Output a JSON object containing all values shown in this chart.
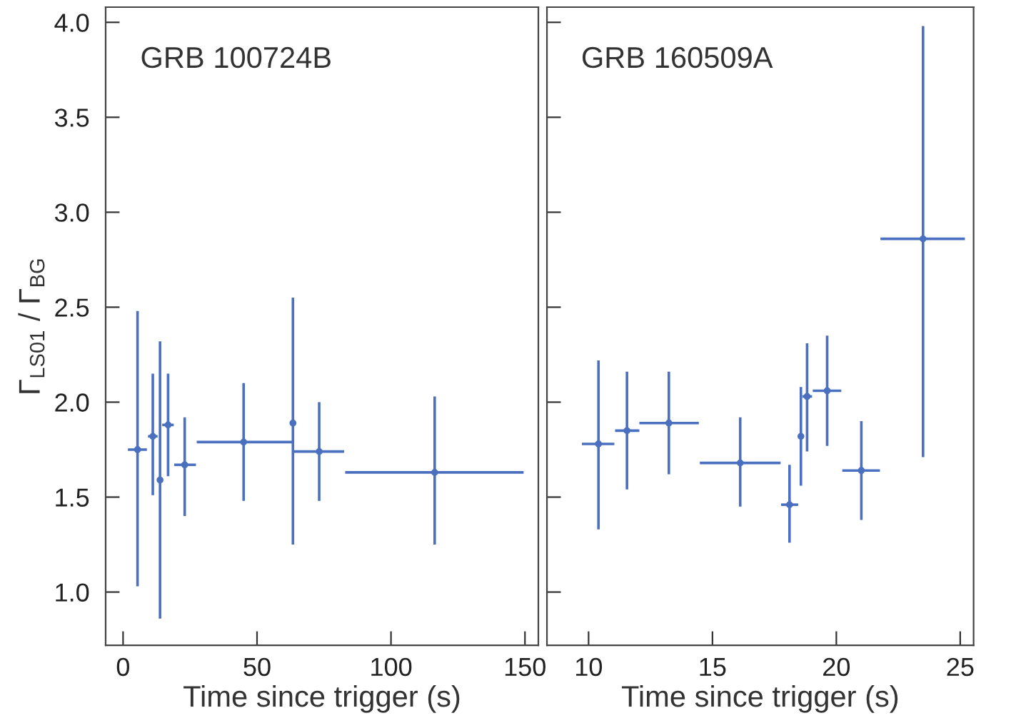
{
  "chart_data": [
    {
      "type": "scatter",
      "annotations": [
        "GRB 100724B"
      ],
      "xlabel": "Time since trigger (s)",
      "ylabel": "Γ$_{LS01}$ / Γ$_{BG}$",
      "marker": "circle",
      "grid": false,
      "legend": false,
      "xlim": [
        -6.5,
        155
      ],
      "xticks": [
        0,
        50,
        100,
        150
      ],
      "ylim": [
        0.72,
        4.08
      ],
      "yticks": [
        {
          "value": 1.0,
          "label": "1.0"
        },
        {
          "value": 1.5,
          "label": "1.5"
        },
        {
          "value": 2.0,
          "label": "2.0"
        },
        {
          "value": 2.5,
          "label": "2.5"
        },
        {
          "value": 3.0,
          "label": "3.0"
        },
        {
          "value": 3.5,
          "label": "3.5"
        },
        {
          "value": 4.0,
          "label": "4.0"
        }
      ],
      "series": [
        {
          "color": "#4a70bf",
          "x": [
            5.4,
            11.1,
            13.8,
            16.8,
            23.0,
            45.0,
            63.4,
            73.2,
            116.3
          ],
          "values": [
            1.75,
            1.82,
            1.59,
            1.88,
            1.67,
            1.79,
            1.89,
            1.74,
            1.63
          ],
          "errors": [
            [
              1.03,
              2.48
            ],
            [
              1.51,
              2.15
            ],
            [
              0.86,
              2.32
            ],
            [
              1.61,
              2.15
            ],
            [
              1.4,
              1.92
            ],
            [
              1.48,
              2.1
            ],
            [
              1.25,
              2.55
            ],
            [
              1.48,
              2.0
            ],
            [
              1.25,
              2.03
            ]
          ],
          "xerrors": [
            [
              1.8,
              8.9
            ],
            [
              9.3,
              12.9
            ],
            null,
            [
              14.6,
              18.9
            ],
            [
              19.1,
              27.2
            ],
            [
              27.5,
              63.2
            ],
            null,
            [
              63.7,
              82.5
            ],
            [
              82.9,
              149.5
            ]
          ]
        }
      ]
    },
    {
      "type": "scatter",
      "annotations": [
        "GRB 160509A"
      ],
      "xlabel": "Time since trigger (s)",
      "marker": "circle",
      "grid": false,
      "legend": false,
      "tick_labels": "x",
      "xlim": [
        8.32,
        25.54
      ],
      "xticks": [
        10,
        15,
        20,
        25
      ],
      "ylim": [
        0.72,
        4.08
      ],
      "yticks": [
        {
          "value": 1.0,
          "label": null
        },
        {
          "value": 1.5,
          "label": null
        },
        {
          "value": 2.0,
          "label": null
        },
        {
          "value": 2.5,
          "label": null
        },
        {
          "value": 3.0,
          "label": null
        },
        {
          "value": 3.5,
          "label": null
        },
        {
          "value": 4.0,
          "label": null
        }
      ],
      "series": [
        {
          "color": "#4a70bf",
          "x": [
            10.4,
            11.55,
            13.24,
            16.12,
            18.11,
            18.57,
            18.82,
            19.63,
            21.01,
            23.5
          ],
          "values": [
            1.78,
            1.85,
            1.89,
            1.68,
            1.46,
            1.82,
            2.03,
            2.06,
            1.64,
            2.86
          ],
          "errors": [
            [
              1.33,
              2.22
            ],
            [
              1.54,
              2.16
            ],
            [
              1.62,
              2.16
            ],
            [
              1.45,
              1.92
            ],
            [
              1.26,
              1.67
            ],
            [
              1.56,
              2.08
            ],
            [
              1.74,
              2.31
            ],
            [
              1.77,
              2.35
            ],
            [
              1.38,
              1.9
            ],
            [
              1.71,
              3.98
            ]
          ],
          "xerrors": [
            [
              9.73,
              11.04
            ],
            [
              11.07,
              12.05
            ],
            [
              12.05,
              14.45
            ],
            [
              14.49,
              17.75
            ],
            [
              17.77,
              18.46
            ],
            null,
            [
              18.63,
              19.02
            ],
            [
              19.05,
              20.2
            ],
            [
              20.24,
              21.76
            ],
            [
              21.78,
              25.19
            ]
          ]
        }
      ]
    }
  ]
}
